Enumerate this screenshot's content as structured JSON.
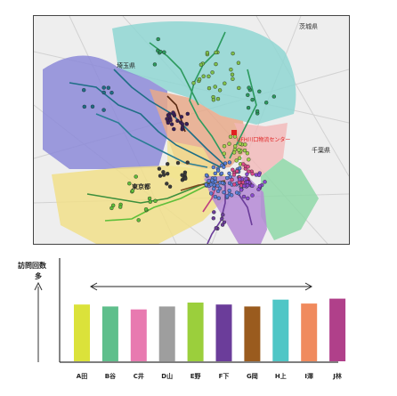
{
  "map": {
    "labels": {
      "ibaraki": "茨城県",
      "saitama": "埼玉県",
      "chiba": "千葉県",
      "tokyo": "東京都",
      "center": "UFH川口物流センター"
    },
    "zone_colors": {
      "north": "#8fd6d2",
      "west": "#8c8ad8",
      "saitama_core": "#e8a98a",
      "southwest": "#f1df8a",
      "east_pink": "#f3b8b8",
      "southeast_green": "#8fd8a8",
      "tokyo_purple": "#b58ad6"
    },
    "center_color": "#e02020"
  },
  "chart": {
    "y_axis_label_line1": "訪問回数",
    "y_axis_label_line2": "多",
    "arrow_description": "",
    "axis_color": "#333333"
  },
  "chart_data": {
    "type": "bar",
    "categories": [
      "A田",
      "B谷",
      "C井",
      "D山",
      "E野",
      "F下",
      "G岡",
      "H上",
      "I澤",
      "J林"
    ],
    "values": [
      58,
      56,
      53,
      56,
      60,
      58,
      56,
      63,
      59,
      64
    ],
    "colors": [
      "#dbe23a",
      "#5fbf8c",
      "#e87ab0",
      "#9e9e9e",
      "#9bcf3c",
      "#6b3d9a",
      "#9a5b1e",
      "#4fc6c6",
      "#f08a5d",
      "#b0408a"
    ],
    "ylim": [
      0,
      100
    ],
    "title": "",
    "xlabel": "",
    "ylabel": "訪問回数"
  }
}
